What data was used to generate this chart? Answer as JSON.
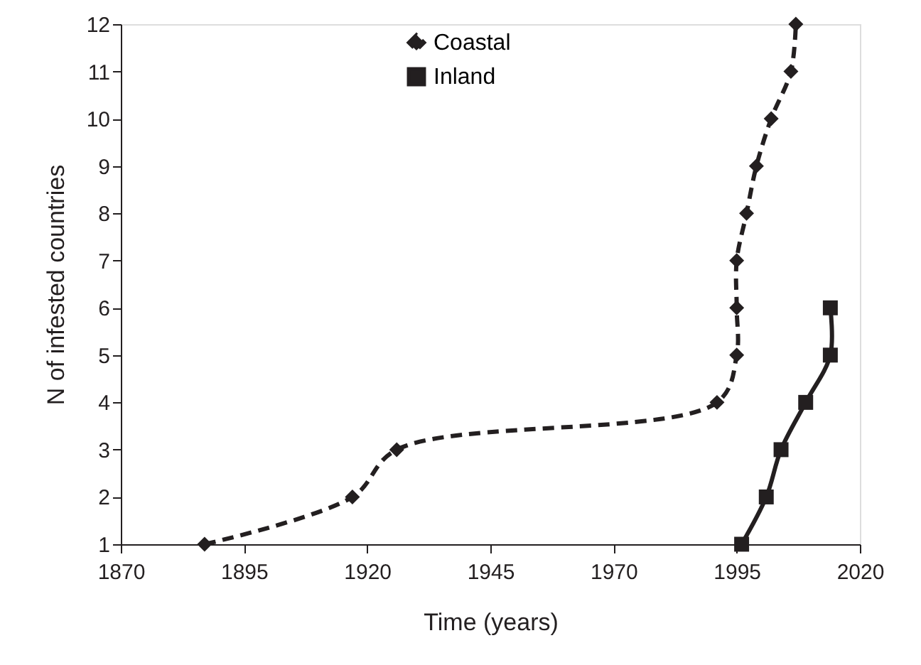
{
  "chart_data": {
    "type": "line",
    "xlabel": "Time (years)",
    "ylabel": "N of infested countries",
    "xlim": [
      1870,
      2020
    ],
    "xticks": [
      1870,
      1895,
      1920,
      1945,
      1970,
      1995,
      2020
    ],
    "ylim": [
      1,
      12
    ],
    "yticks": [
      1,
      2,
      3,
      4,
      5,
      6,
      7,
      8,
      9,
      10,
      11,
      12
    ],
    "grid": false,
    "legend": "top",
    "series": [
      {
        "name": "Coastal",
        "color": "#231f20",
        "marker": "diamond",
        "line_style": "dashed",
        "x": [
          1887,
          1917,
          1926,
          1991,
          1995,
          1995,
          1995,
          1997,
          1999,
          2002,
          2006,
          2007
        ],
        "values": [
          1,
          2,
          3,
          4,
          5,
          6,
          7,
          8,
          9,
          10,
          11,
          12
        ]
      },
      {
        "name": "Inland",
        "color": "#231f20",
        "marker": "square",
        "line_style": "solid",
        "x": [
          1996,
          2001,
          2004,
          2009,
          2014,
          2014
        ],
        "values": [
          1,
          2,
          3,
          4,
          5,
          6
        ]
      }
    ]
  }
}
